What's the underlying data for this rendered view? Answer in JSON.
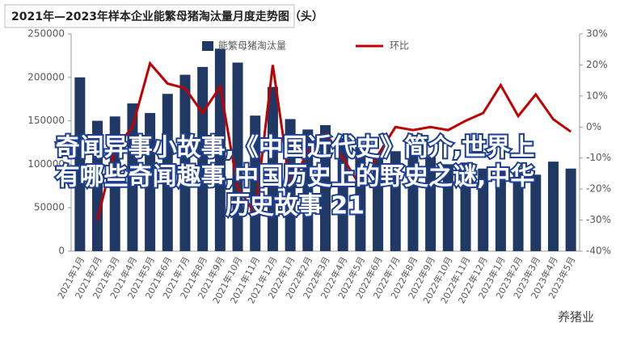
{
  "chart_data": {
    "type": "bar_line",
    "title": "2021年—2023年样本企业能繁母猪淘汰量月度走势图（头）",
    "categories": [
      "2021年1月",
      "2021年2月",
      "2021年3月",
      "2021年4月",
      "2021年5月",
      "2021年6月",
      "2021年7月",
      "2021年8月",
      "2021年9月",
      "2021年10月",
      "2021年11月",
      "2021年12月",
      "2022年1月",
      "2022年2月",
      "2022年3月",
      "2022年4月",
      "2022年5月",
      "2022年6月",
      "2022年7月",
      "2022年8月",
      "2022年9月",
      "2022年10月",
      "2022年11月",
      "2022年12月",
      "2023年1月",
      "2023年2月",
      "2023年3月",
      "2023年4月",
      "2023年5月"
    ],
    "series": [
      {
        "name": "能繁母猪淘汰量",
        "color": "#203864",
        "type": "bar",
        "values": [
          200000,
          150000,
          155000,
          170000,
          159000,
          181000,
          203000,
          212000,
          233000,
          217000,
          156000,
          189000,
          152000,
          140000,
          145000,
          130000,
          120000,
          110000,
          115000,
          112000,
          108000,
          100000,
          102000,
          95000,
          97000,
          92000,
          88000,
          103000,
          95000
        ]
      },
      {
        "name": "环比",
        "color": "#c00000",
        "type": "line",
        "axis": "y2",
        "values": [
          null,
          -30,
          -7,
          0,
          20.5,
          14,
          12.5,
          4.5,
          13,
          -19.5,
          -28,
          20,
          -19,
          -8,
          -2,
          -10,
          -19,
          -9,
          0,
          -1,
          0,
          -1,
          2,
          4.5,
          13.5,
          3.5,
          10.5,
          2.5,
          -1.5
        ]
      }
    ],
    "ylim": [
      0,
      250000
    ],
    "yticks": [
      0,
      50000,
      100000,
      150000,
      200000,
      250000
    ],
    "y2lim": [
      -40,
      30
    ],
    "y2ticks": [
      {
        "value": -40,
        "label": "-40%"
      },
      {
        "value": -30,
        "label": "-30%"
      },
      {
        "value": -20,
        "label": "-20%"
      },
      {
        "value": -10,
        "label": "-10%"
      },
      {
        "value": 0,
        "label": "0%"
      },
      {
        "value": 10,
        "label": "10%"
      },
      {
        "value": 20,
        "label": "20%"
      },
      {
        "value": 30,
        "label": "30%"
      }
    ],
    "overlay_text": [
      "奇闻异事小故事,《中国近代史》简介,世界上",
      "有哪些奇闻趣事,中国历史上的野史之谜,中华",
      "历史故事 21"
    ],
    "watermark": "养猪业"
  }
}
